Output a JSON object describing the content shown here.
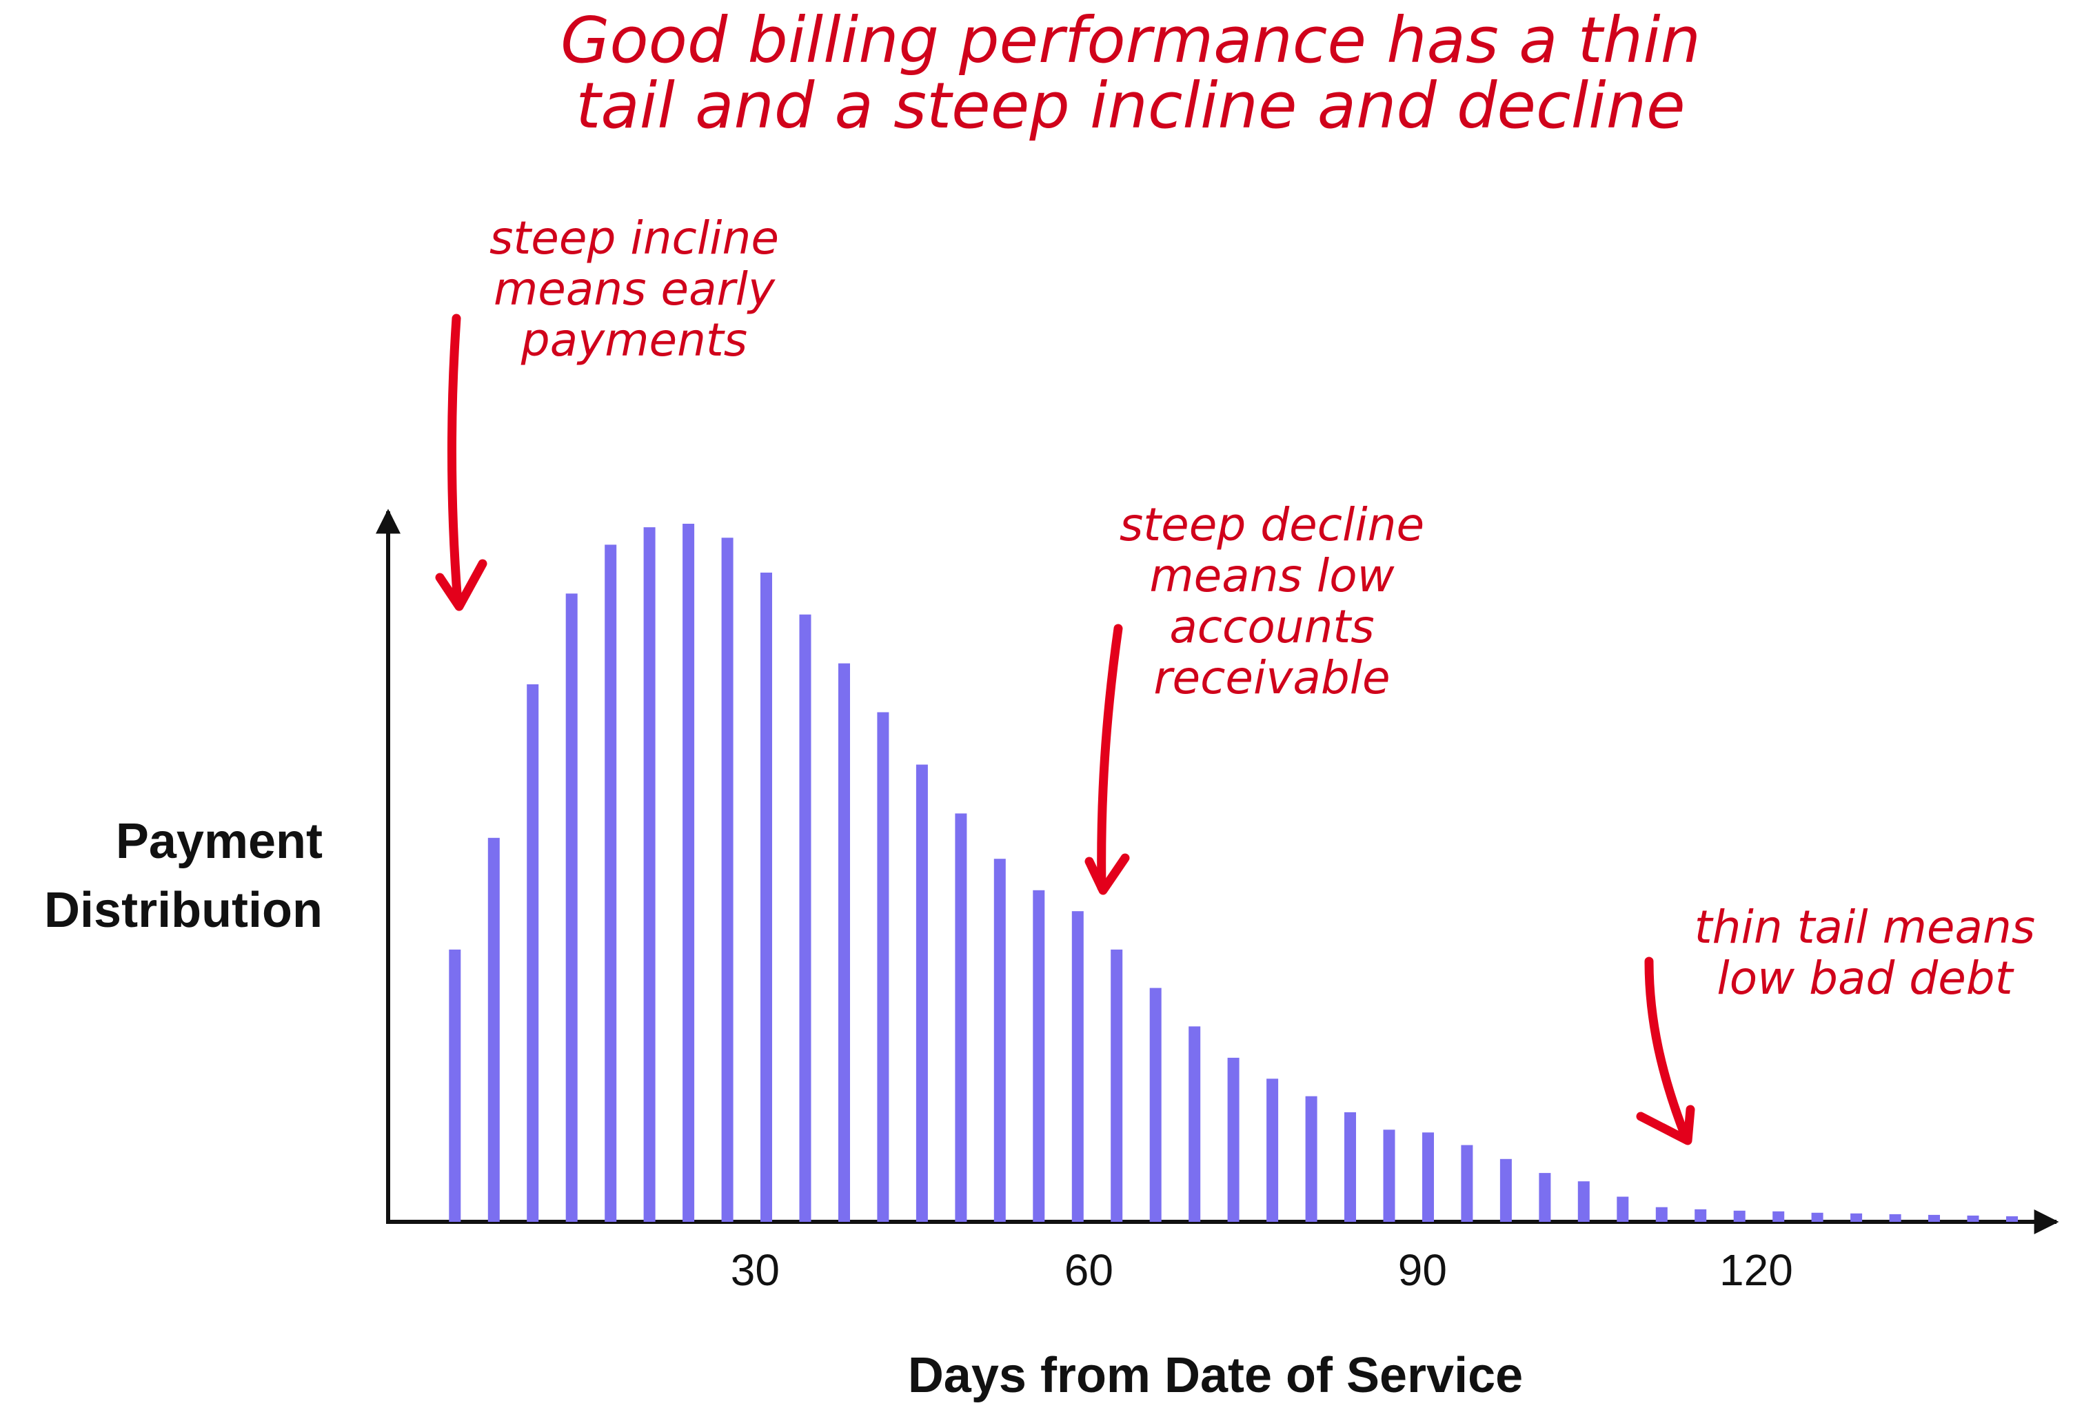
{
  "chart_data": {
    "type": "bar",
    "title_lines": [
      "Good billing performance has a thin",
      "tail and a steep incline and decline"
    ],
    "ylabel_lines": [
      "Payment",
      "Distribution"
    ],
    "xlabel": "Days from Date of Service",
    "x_ticks": [
      30,
      60,
      90,
      120
    ],
    "xlim": [
      -3,
      147
    ],
    "ylim": [
      0,
      1.0
    ],
    "x": [
      3,
      6.5,
      10,
      13.5,
      17,
      20.5,
      24,
      27.5,
      31,
      34.5,
      38,
      41.5,
      45,
      48.5,
      52,
      55.5,
      59,
      62.5,
      66,
      69.5,
      73,
      76.5,
      80,
      83.5,
      87,
      90.5,
      94,
      97.5,
      101,
      104.5,
      108,
      111.5,
      115,
      118.5,
      122,
      125.5,
      129,
      132.5,
      136,
      139.5,
      143
    ],
    "values": [
      0.39,
      0.55,
      0.77,
      0.9,
      0.97,
      0.995,
      1.0,
      0.98,
      0.93,
      0.87,
      0.8,
      0.73,
      0.655,
      0.585,
      0.52,
      0.475,
      0.445,
      0.39,
      0.335,
      0.28,
      0.235,
      0.205,
      0.18,
      0.157,
      0.132,
      0.128,
      0.11,
      0.09,
      0.07,
      0.058,
      0.036,
      0.021,
      0.018,
      0.016,
      0.015,
      0.013,
      0.012,
      0.011,
      0.01,
      0.009,
      0.008
    ],
    "bar_color": "#7b6ff0",
    "annotation_color": "#d0021b",
    "grid": false,
    "annotations": [
      {
        "id": "incline",
        "lines": [
          "steep incline",
          "means early",
          "payments"
        ]
      },
      {
        "id": "decline",
        "lines": [
          "steep decline",
          "means low",
          "accounts",
          "receivable"
        ]
      },
      {
        "id": "tail",
        "lines": [
          "thin tail means",
          "low bad debt"
        ]
      }
    ]
  }
}
